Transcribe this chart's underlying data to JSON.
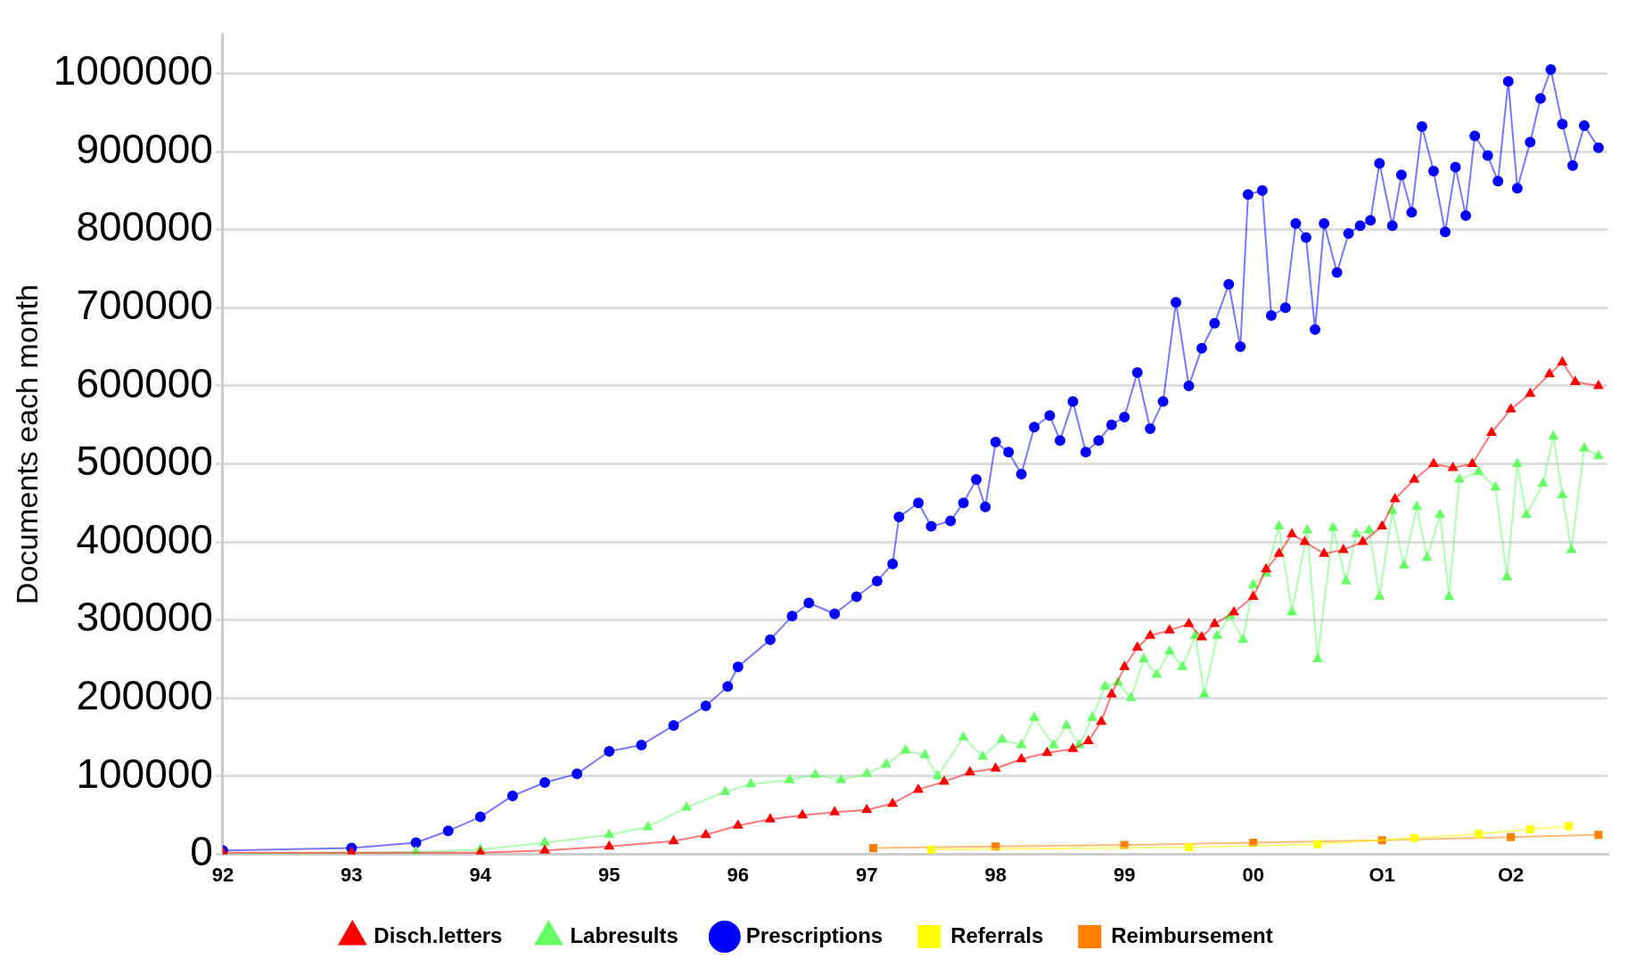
{
  "chart_data": {
    "type": "line",
    "ylabel": "Documents each month",
    "xlim": [
      1992,
      2002.75
    ],
    "ylim": [
      0,
      1050000
    ],
    "xticks": [
      {
        "value": 1992,
        "label": "92"
      },
      {
        "value": 1993,
        "label": "93"
      },
      {
        "value": 1994,
        "label": "94"
      },
      {
        "value": 1995,
        "label": "95"
      },
      {
        "value": 1996,
        "label": "96"
      },
      {
        "value": 1997,
        "label": "97"
      },
      {
        "value": 1998,
        "label": "98"
      },
      {
        "value": 1999,
        "label": "99"
      },
      {
        "value": 2000,
        "label": "00"
      },
      {
        "value": 2001,
        "label": "O1"
      },
      {
        "value": 2002,
        "label": "O2"
      }
    ],
    "yticks": [
      0,
      100000,
      200000,
      300000,
      400000,
      500000,
      600000,
      700000,
      800000,
      900000,
      1000000
    ],
    "grid": "y",
    "legend": "bottom",
    "series": [
      {
        "name": "Disch.letters",
        "color": "#ff0000",
        "marker": "triangle",
        "x": [
          1992,
          1993,
          1994,
          1994.5,
          1995,
          1995.5,
          1995.75,
          1996,
          1996.25,
          1996.5,
          1996.75,
          1997,
          1997.2,
          1997.4,
          1997.6,
          1997.8,
          1998,
          1998.2,
          1998.4,
          1998.6,
          1998.72,
          1998.82,
          1998.9,
          1999,
          1999.1,
          1999.2,
          1999.35,
          1999.5,
          1999.6,
          1999.7,
          1999.85,
          2000,
          2000.1,
          2000.2,
          2000.3,
          2000.4,
          2000.55,
          2000.7,
          2000.85,
          2001,
          2001.1,
          2001.25,
          2001.4,
          2001.55,
          2001.7,
          2001.85,
          2002,
          2002.15,
          2002.3,
          2002.4,
          2002.5,
          2002.68
        ],
        "values": [
          2000,
          2000,
          2000,
          5000,
          10000,
          17000,
          25000,
          37000,
          45000,
          50000,
          54000,
          57000,
          65000,
          83000,
          93000,
          105000,
          110000,
          122000,
          130000,
          135000,
          145000,
          170000,
          205000,
          240000,
          265000,
          280000,
          287000,
          295000,
          278000,
          295000,
          310000,
          330000,
          365000,
          385000,
          410000,
          400000,
          385000,
          390000,
          400000,
          420000,
          455000,
          480000,
          500000,
          495000,
          500000,
          540000,
          570000,
          590000,
          615000,
          630000,
          605000,
          600000
        ]
      },
      {
        "name": "Labresults",
        "color": "#66ff66",
        "marker": "triangle",
        "x": [
          1992,
          1993.5,
          1994,
          1994.5,
          1995,
          1995.3,
          1995.6,
          1995.9,
          1996.1,
          1996.4,
          1996.6,
          1996.8,
          1997,
          1997.15,
          1997.3,
          1997.45,
          1997.55,
          1997.75,
          1997.9,
          1998.05,
          1998.2,
          1998.3,
          1998.45,
          1998.55,
          1998.65,
          1998.75,
          1998.85,
          1998.95,
          1999.05,
          1999.15,
          1999.25,
          1999.35,
          1999.45,
          1999.55,
          1999.62,
          1999.72,
          1999.82,
          1999.92,
          2000,
          2000.1,
          2000.2,
          2000.3,
          2000.42,
          2000.5,
          2000.62,
          2000.72,
          2000.8,
          2000.9,
          2000.98,
          2001.08,
          2001.17,
          2001.27,
          2001.35,
          2001.45,
          2001.52,
          2001.6,
          2001.75,
          2001.88,
          2001.97,
          2002.05,
          2002.12,
          2002.25,
          2002.33,
          2002.4,
          2002.47,
          2002.57,
          2002.68
        ],
        "values": [
          0,
          3000,
          6000,
          15000,
          25000,
          35000,
          60000,
          80000,
          90000,
          95000,
          102000,
          95000,
          103000,
          115000,
          133000,
          127000,
          100000,
          150000,
          125000,
          147000,
          140000,
          175000,
          140000,
          165000,
          140000,
          175000,
          215000,
          220000,
          200000,
          250000,
          230000,
          260000,
          240000,
          280000,
          205000,
          280000,
          305000,
          275000,
          345000,
          360000,
          420000,
          310000,
          415000,
          250000,
          418000,
          350000,
          410000,
          415000,
          330000,
          440000,
          370000,
          445000,
          380000,
          435000,
          330000,
          480000,
          490000,
          470000,
          355000,
          500000,
          435000,
          475000,
          535000,
          460000,
          390000,
          520000,
          510000
        ]
      },
      {
        "name": "Prescriptions",
        "color": "#0000ff",
        "marker": "circle",
        "x": [
          1992,
          1993,
          1993.5,
          1993.75,
          1994,
          1994.25,
          1994.5,
          1994.75,
          1995,
          1995.25,
          1995.5,
          1995.75,
          1995.92,
          1996,
          1996.25,
          1996.42,
          1996.55,
          1996.75,
          1996.92,
          1997.08,
          1997.2,
          1997.25,
          1997.4,
          1997.5,
          1997.65,
          1997.75,
          1997.85,
          1997.92,
          1998,
          1998.1,
          1998.2,
          1998.3,
          1998.42,
          1998.5,
          1998.6,
          1998.7,
          1998.8,
          1998.9,
          1999,
          1999.1,
          1999.2,
          1999.3,
          1999.4,
          1999.5,
          1999.6,
          1999.7,
          1999.81,
          1999.9,
          1999.96,
          2000.07,
          2000.14,
          2000.25,
          2000.33,
          2000.41,
          2000.48,
          2000.55,
          2000.65,
          2000.74,
          2000.83,
          2000.91,
          2000.98,
          2001.08,
          2001.15,
          2001.23,
          2001.31,
          2001.4,
          2001.49,
          2001.57,
          2001.65,
          2001.72,
          2001.82,
          2001.9,
          2001.98,
          2002.05,
          2002.15,
          2002.23,
          2002.31,
          2002.4,
          2002.48,
          2002.57,
          2002.68
        ],
        "values": [
          5000,
          8000,
          15000,
          30000,
          48000,
          75000,
          92000,
          103000,
          132000,
          140000,
          165000,
          190000,
          215000,
          240000,
          275000,
          305000,
          322000,
          308000,
          330000,
          350000,
          372000,
          432000,
          450000,
          420000,
          427000,
          450000,
          480000,
          445000,
          528000,
          515000,
          487000,
          547000,
          562000,
          530000,
          580000,
          515000,
          530000,
          550000,
          560000,
          617000,
          545000,
          580000,
          707000,
          600000,
          648000,
          680000,
          730000,
          650000,
          845000,
          850000,
          690000,
          700000,
          808000,
          790000,
          672000,
          808000,
          745000,
          795000,
          805000,
          812000,
          885000,
          805000,
          870000,
          822000,
          932000,
          875000,
          797000,
          880000,
          818000,
          920000,
          895000,
          862000,
          990000,
          853000,
          912000,
          968000,
          1005000,
          935000,
          882000,
          933000,
          905000
        ]
      },
      {
        "name": "Referrals",
        "color": "#ffff00",
        "marker": "square",
        "x": [
          1997.5,
          1999.5,
          2000.5,
          2001.25,
          2001.75,
          2002.15,
          2002.45
        ],
        "values": [
          6000,
          9000,
          13000,
          21000,
          26000,
          32000,
          36000
        ]
      },
      {
        "name": "Reimbursement",
        "color": "#ff8000",
        "marker": "square",
        "x": [
          1997.05,
          1998,
          1999,
          2000,
          2001,
          2002,
          2002.68
        ],
        "values": [
          8000,
          10000,
          12000,
          15000,
          18000,
          22000,
          25000
        ]
      }
    ]
  }
}
